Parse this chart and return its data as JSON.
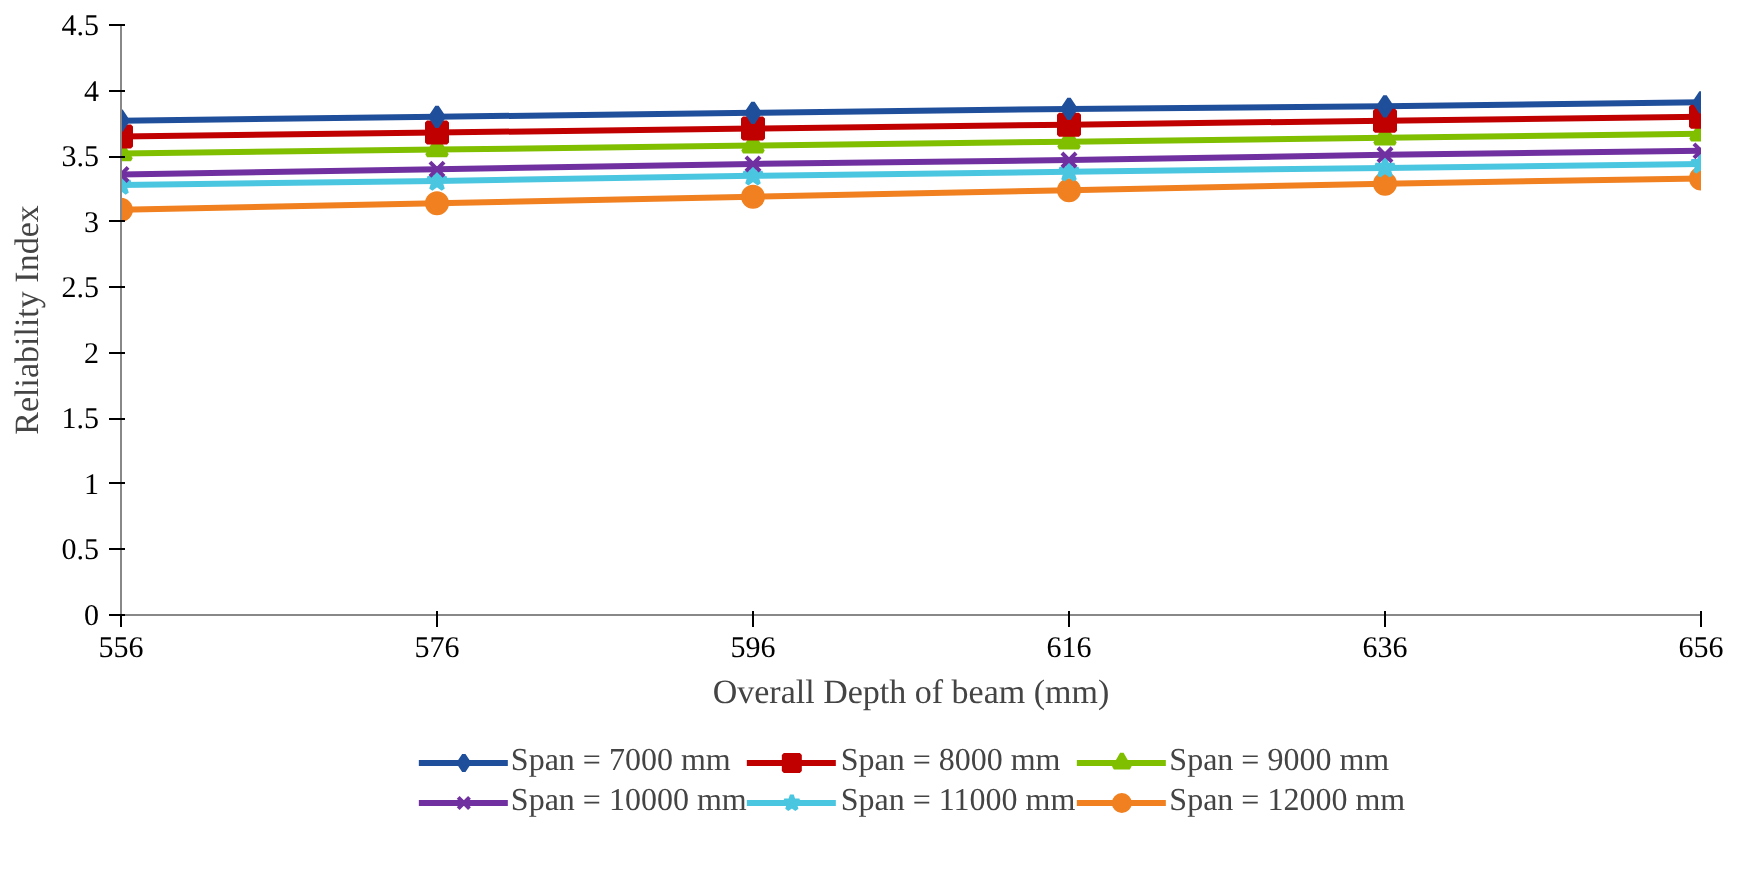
{
  "chart_data": {
    "type": "line",
    "xlabel": "Overall Depth of beam (mm)",
    "ylabel": "Reliability Index",
    "x": [
      556,
      576,
      596,
      616,
      636,
      656
    ],
    "xlim": [
      556,
      656
    ],
    "xticks": [
      556,
      576,
      596,
      616,
      636,
      656
    ],
    "ylim": [
      0,
      4.5
    ],
    "yticks": [
      0,
      0.5,
      1,
      1.5,
      2,
      2.5,
      3,
      3.5,
      4,
      4.5
    ],
    "grid": false,
    "legend": "bottom",
    "line_style": "solid",
    "series": [
      {
        "name": "Span = 7000 mm",
        "color": "#1f4e9a",
        "marker": "diamond",
        "values": [
          3.77,
          3.8,
          3.83,
          3.86,
          3.88,
          3.91
        ]
      },
      {
        "name": "Span = 8000 mm",
        "color": "#c00000",
        "marker": "square",
        "values": [
          3.65,
          3.68,
          3.71,
          3.74,
          3.77,
          3.8
        ]
      },
      {
        "name": "Span = 9000 mm",
        "color": "#7fbf00",
        "marker": "triangle",
        "values": [
          3.52,
          3.55,
          3.58,
          3.61,
          3.64,
          3.67
        ]
      },
      {
        "name": "Span = 10000 mm",
        "color": "#7030a0",
        "marker": "cross",
        "values": [
          3.36,
          3.4,
          3.44,
          3.47,
          3.51,
          3.54
        ]
      },
      {
        "name": "Span = 11000 mm",
        "color": "#4bc6e0",
        "marker": "star",
        "values": [
          3.28,
          3.31,
          3.35,
          3.38,
          3.41,
          3.44
        ]
      },
      {
        "name": "Span = 12000 mm",
        "color": "#f08020",
        "marker": "circle",
        "values": [
          3.09,
          3.14,
          3.19,
          3.24,
          3.29,
          3.33
        ]
      }
    ]
  }
}
